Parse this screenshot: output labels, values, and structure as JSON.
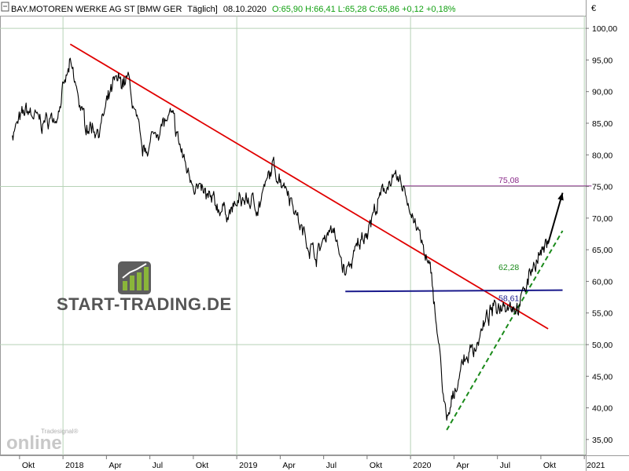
{
  "header": {
    "icon": "lock-icon",
    "prefix": "BAY.MOTOREN WERKE AG ST [BMW GER",
    "period": "Täglich]",
    "date": "08.10.2020",
    "quote": "O:65,90 H:66,41 L:65,28 C:65,86 +0,12 +0,18%"
  },
  "watermarks": {
    "start_trading": "START-TRADING.DE",
    "tradesignal_small": "Tradesignal®",
    "tradesignal_big": "online"
  },
  "colors": {
    "price": "#000000",
    "downtrend": "#e00000",
    "support": "#1a1a8c",
    "resistance": "#8a2a8a",
    "uptrend": "#1a8a1a",
    "grid": "#b6d2b6",
    "quote_green": "#10a010"
  },
  "chart_data": {
    "type": "line",
    "currency": "€",
    "y_ticks": [
      "100,00",
      "95,00",
      "90,00",
      "85,00",
      "80,00",
      "75,00",
      "70,00",
      "65,00",
      "60,00",
      "55,00",
      "50,00",
      "45,00",
      "40,00",
      "35,00"
    ],
    "x_ticks": [
      "Okt",
      "2018",
      "Apr",
      "Jul",
      "Okt",
      "2019",
      "Apr",
      "Jul",
      "Okt",
      "2020",
      "Apr",
      "Jul",
      "Okt",
      "2021"
    ],
    "ylim": [
      32.5,
      102
    ],
    "grid": true,
    "series": [
      {
        "x": [
          "2017-09",
          "2017-10",
          "2017-11",
          "2017-12",
          "2018-01",
          "2018-02",
          "2018-03",
          "2018-04",
          "2018-05",
          "2018-06",
          "2018-07",
          "2018-08",
          "2018-09",
          "2018-10",
          "2018-11",
          "2018-12",
          "2019-01",
          "2019-02",
          "2019-03",
          "2019-04",
          "2019-05",
          "2019-06",
          "2019-07",
          "2019-08",
          "2019-09",
          "2019-10",
          "2019-11",
          "2019-12",
          "2020-01",
          "2020-02",
          "2020-03",
          "2020-04",
          "2020-05",
          "2020-06",
          "2020-07",
          "2020-08",
          "2020-09",
          "2020-10"
        ],
        "values": [
          83.5,
          87,
          85,
          86,
          94,
          85,
          84,
          91,
          92,
          80,
          84,
          86,
          78,
          74,
          72,
          71,
          73,
          72,
          78,
          75,
          68,
          64,
          69,
          61,
          66,
          71,
          76,
          75,
          68,
          60,
          37,
          47,
          50,
          55,
          57,
          56,
          63,
          65.86
        ]
      }
    ],
    "annotations": [
      {
        "label": "75,08",
        "type": "resistance",
        "value": 75.08
      },
      {
        "label": "62,28",
        "type": "uptrend",
        "value": 62.28
      },
      {
        "label": "58,61",
        "type": "support",
        "value": 58.61
      }
    ],
    "trendlines": [
      {
        "name": "downtrend",
        "from": [
          "2018-01",
          97.5
        ],
        "to": [
          "2020-10",
          52.5
        ]
      },
      {
        "name": "uptrend",
        "from": [
          "2020-03",
          36.5
        ],
        "to": [
          "2020-11",
          68
        ]
      },
      {
        "name": "support",
        "from": [
          "2019-08",
          58.4
        ],
        "to": [
          "2020-11",
          58.61
        ]
      },
      {
        "name": "resistance",
        "from": [
          "2019-12",
          75.08
        ],
        "to": [
          "2021-01",
          75.08
        ]
      },
      {
        "name": "target-arrow",
        "from": [
          "2020-10",
          66
        ],
        "to": [
          "2020-11",
          74
        ]
      }
    ]
  }
}
